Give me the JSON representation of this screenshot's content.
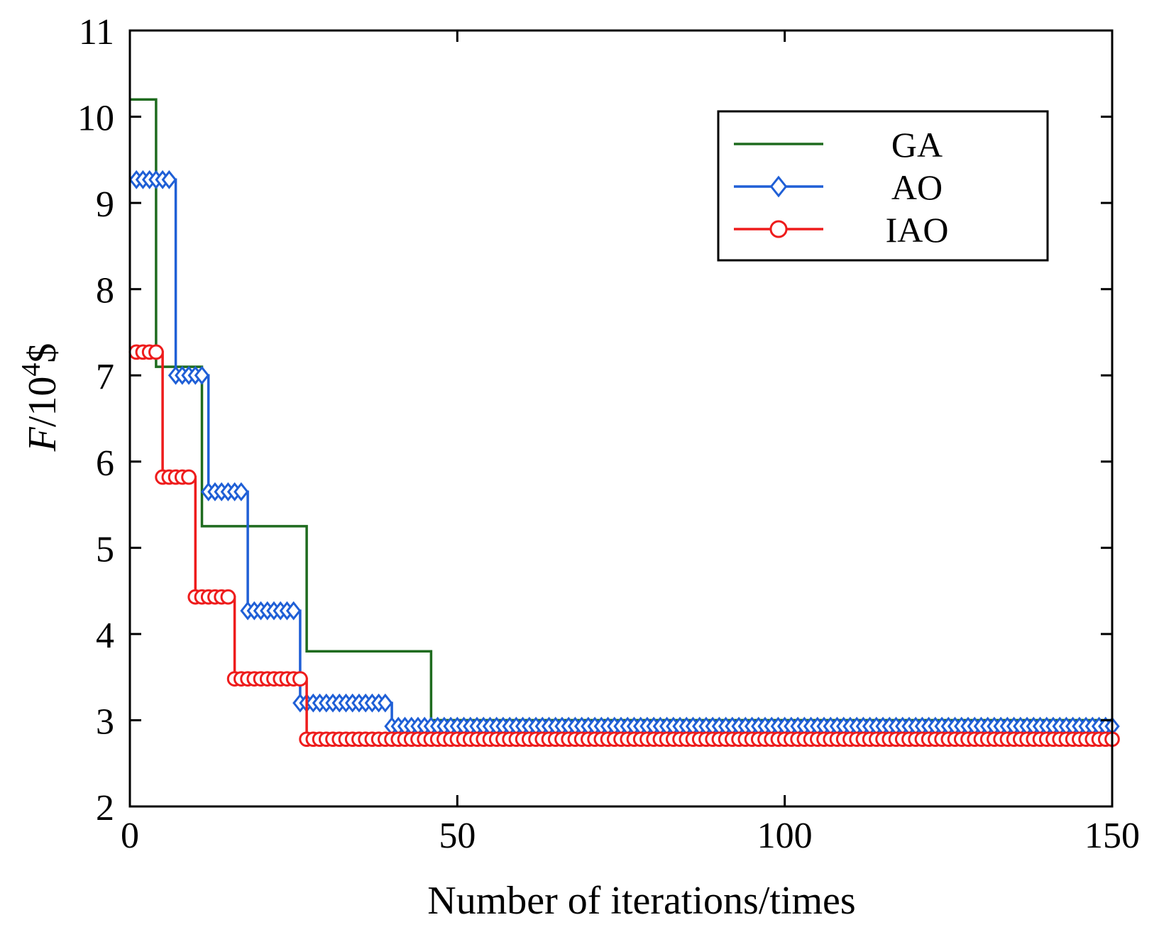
{
  "chart_data": {
    "type": "line",
    "title": "",
    "xlabel": "Number of iterations/times",
    "ylabel": {
      "prefix": "F",
      "slash": "/10",
      "superscript": "4",
      "suffix": "$"
    },
    "xlim": [
      0,
      150
    ],
    "ylim": [
      2,
      11
    ],
    "xticks": [
      "0",
      "50",
      "100",
      "150"
    ],
    "xtick_values": [
      0,
      50,
      100,
      150
    ],
    "yticks": [
      "2",
      "3",
      "4",
      "5",
      "6",
      "7",
      "8",
      "9",
      "10",
      "11"
    ],
    "ytick_values": [
      2,
      3,
      4,
      5,
      6,
      7,
      8,
      9,
      10,
      11
    ],
    "grid": false,
    "legend_position": "top-right",
    "series": [
      {
        "name": "GA",
        "color": "#1e6b1e",
        "marker": "none",
        "steps": [
          [
            0,
            10.2
          ],
          [
            4,
            7.1
          ],
          [
            11,
            5.25
          ],
          [
            27,
            3.8
          ],
          [
            46,
            3.0
          ],
          [
            150,
            3.0
          ]
        ]
      },
      {
        "name": "AO",
        "color": "#1f5fd6",
        "marker": "diamond",
        "steps": [
          [
            1,
            9.27
          ],
          [
            7,
            7.0
          ],
          [
            12,
            5.65
          ],
          [
            18,
            4.27
          ],
          [
            26,
            3.2
          ],
          [
            40,
            2.93
          ],
          [
            150,
            2.93
          ]
        ]
      },
      {
        "name": "IAO",
        "color": "#ee1c1c",
        "marker": "circle",
        "steps": [
          [
            1,
            7.27
          ],
          [
            5,
            5.82
          ],
          [
            10,
            4.43
          ],
          [
            16,
            3.48
          ],
          [
            27,
            2.78
          ],
          [
            150,
            2.78
          ]
        ]
      }
    ]
  }
}
